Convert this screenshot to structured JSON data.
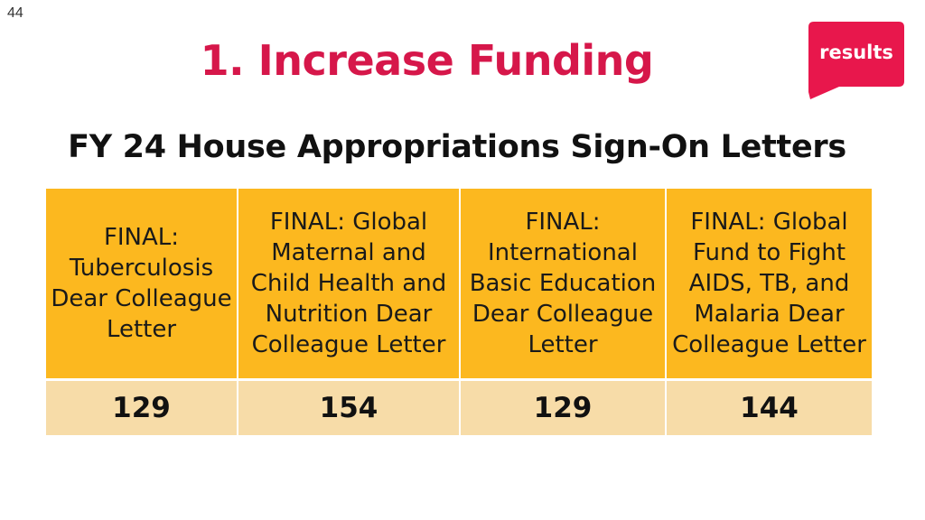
{
  "page_number": "44",
  "title": "1. Increase Funding",
  "subtitle": "FY 24 House Appropriations Sign-On Letters",
  "logo": {
    "text": "results",
    "color": "#e8174c"
  },
  "colors": {
    "title": "#d6174a",
    "header_fill": "#fcb81f",
    "value_fill": "#f7dca8"
  },
  "table": {
    "headers": [
      "FINAL: Tuberculosis Dear Colleague Letter",
      "FINAL: Global Maternal and Child Health and Nutrition Dear Colleague Letter",
      "FINAL: International Basic Education Dear Colleague Letter",
      "FINAL: Global Fund to Fight AIDS, TB, and Malaria Dear Colleague Letter"
    ],
    "values": [
      "129",
      "154",
      "129",
      "144"
    ]
  }
}
